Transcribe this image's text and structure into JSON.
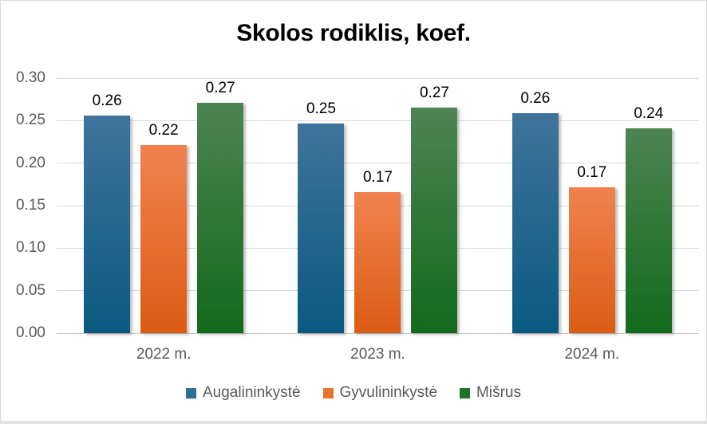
{
  "chart_data": {
    "type": "bar",
    "title": "Skolos rodiklis, koef.",
    "categories": [
      "2022 m.",
      "2023 m.",
      "2024 m."
    ],
    "series": [
      {
        "name": "Augalininkystė",
        "values": [
          0.26,
          0.25,
          0.26
        ],
        "labels": [
          "0.26",
          "0.25",
          "0.26"
        ],
        "bar_heights": [
          0.256,
          0.247,
          0.259
        ],
        "color_top": "#40739b",
        "color_bottom": "#0a5a81",
        "legend_color": "#2e6f93"
      },
      {
        "name": "Gyvulininkystė",
        "values": [
          0.22,
          0.17,
          0.17
        ],
        "labels": [
          "0.22",
          "0.17",
          "0.17"
        ],
        "bar_heights": [
          0.221,
          0.166,
          0.172
        ],
        "color_top": "#f08250",
        "color_bottom": "#db5c13",
        "legend_color": "#e8722c"
      },
      {
        "name": "Mišrus",
        "values": [
          0.27,
          0.27,
          0.24
        ],
        "labels": [
          "0.27",
          "0.27",
          "0.24"
        ],
        "bar_heights": [
          0.271,
          0.265,
          0.241
        ],
        "color_top": "#4d8453",
        "color_bottom": "#136a1c",
        "legend_color": "#1e7228"
      }
    ],
    "xlabel": "",
    "ylabel": "",
    "ylim": [
      0,
      0.3
    ],
    "y_ticks": [
      "0.30",
      "0.25",
      "0.20",
      "0.15",
      "0.10",
      "0.05",
      "0.00"
    ],
    "grid": true,
    "legend_position": "bottom",
    "colors": {
      "gridline": "#d9d9d9",
      "axis_text": "#595959",
      "label_text": "#000000",
      "background": "#ffffff",
      "border": "#d9d9d9"
    }
  }
}
